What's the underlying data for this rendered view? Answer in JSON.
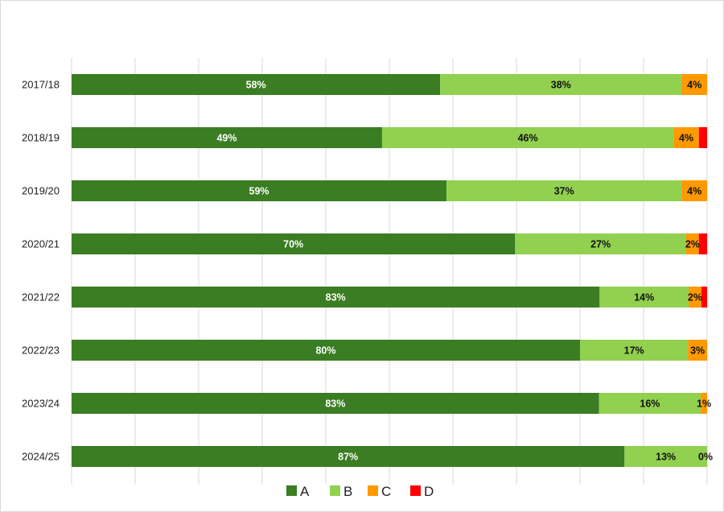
{
  "chart_data": {
    "type": "bar",
    "orientation": "horizontal",
    "stacked": "percent",
    "title": "",
    "xlabel": "",
    "ylabel": "",
    "xlim": [
      0,
      100
    ],
    "grid": true,
    "legend_position": "bottom",
    "categories": [
      "2017/18",
      "2018/19",
      "2019/20",
      "2020/21",
      "2021/22",
      "2022/23",
      "2023/24",
      "2024/25"
    ],
    "series": [
      {
        "name": "A",
        "color": "#3a7d23",
        "label_color": "#ffffff",
        "values": [
          58,
          49,
          59,
          70,
          83,
          80,
          83,
          87
        ],
        "labels": [
          "58%",
          "49%",
          "59%",
          "70%",
          "83%",
          "80%",
          "83%",
          "87%"
        ]
      },
      {
        "name": "B",
        "color": "#92d050",
        "label_color": "#111111",
        "values": [
          38,
          46,
          37,
          27,
          14,
          17,
          16,
          13
        ],
        "labels": [
          "38%",
          "46%",
          "37%",
          "27%",
          "14%",
          "17%",
          "16%",
          "13%"
        ]
      },
      {
        "name": "C",
        "color": "#ff9900",
        "label_color": "#111111",
        "values": [
          4,
          4,
          4,
          2,
          2,
          3,
          1,
          0
        ],
        "labels": [
          "4%",
          "4%",
          "4%",
          "2%",
          "2%",
          "3%",
          "1%",
          "0%"
        ]
      },
      {
        "name": "D",
        "color": "#ff0000",
        "label_color": "#111111",
        "values": [
          0,
          1.3,
          0,
          1.3,
          0.9,
          0,
          0,
          0
        ],
        "labels": [
          "",
          "",
          "",
          "",
          "",
          "",
          "",
          ""
        ]
      }
    ]
  }
}
